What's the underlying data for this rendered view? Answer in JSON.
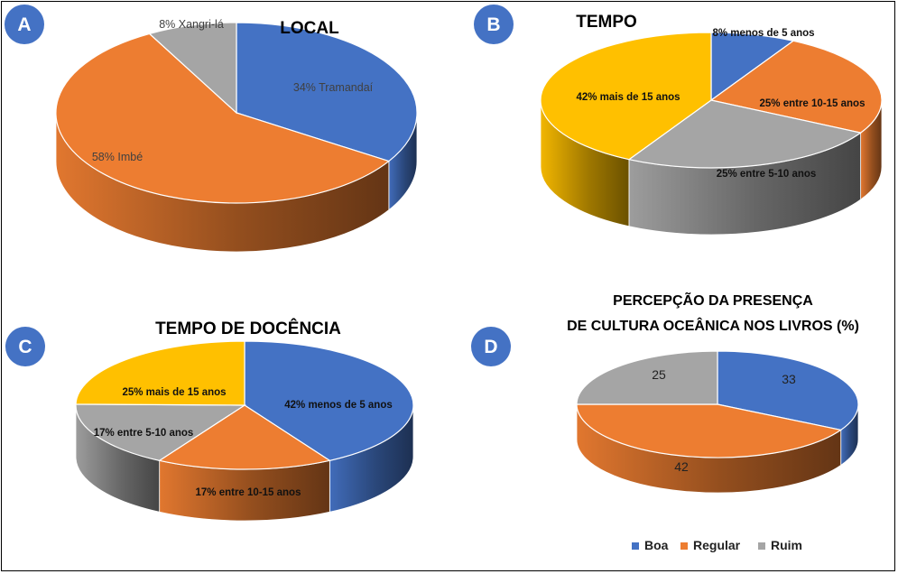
{
  "colors": {
    "blue": "#4472C4",
    "orange": "#ED7D31",
    "gray": "#A5A5A5",
    "gold": "#FFC000",
    "badge": "#4472C4",
    "badge_text": "#FFFFFF",
    "title_text": "#000000"
  },
  "chart_data": [
    {
      "badge": "A",
      "type": "pie",
      "title": "LOCAL",
      "slices": [
        {
          "label": "34% Tramandaí",
          "value": 34,
          "color": "blue"
        },
        {
          "label": "58% Imbé",
          "value": 58,
          "color": "orange"
        },
        {
          "label": "8% Xangri-lá",
          "value": 8,
          "color": "gray"
        }
      ]
    },
    {
      "badge": "B",
      "type": "pie",
      "title": "TEMPO",
      "slices": [
        {
          "label": "8% menos de 5 anos",
          "value": 8,
          "color": "blue"
        },
        {
          "label": "25% entre 10-15 anos",
          "value": 25,
          "color": "orange"
        },
        {
          "label": "25% entre 5-10 anos",
          "value": 25,
          "color": "gray"
        },
        {
          "label": "42% mais de 15 anos",
          "value": 42,
          "color": "gold"
        }
      ]
    },
    {
      "badge": "C",
      "type": "pie",
      "title": "TEMPO DE DOCÊNCIA",
      "slices": [
        {
          "label": "42% menos de 5 anos",
          "value": 42,
          "color": "blue"
        },
        {
          "label": "17% entre 10-15 anos",
          "value": 17,
          "color": "orange"
        },
        {
          "label": "17% entre 5-10 anos",
          "value": 17,
          "color": "gray"
        },
        {
          "label": "25% mais de 15 anos",
          "value": 25,
          "color": "gold"
        }
      ]
    },
    {
      "badge": "D",
      "type": "pie",
      "title": [
        "PERCEPÇÃO DA PRESENÇA",
        "DE CULTURA OCEÂNICA NOS LIVROS (%)"
      ],
      "slices": [
        {
          "label": "33",
          "value": 33,
          "color": "blue"
        },
        {
          "label": "42",
          "value": 42,
          "color": "orange"
        },
        {
          "label": "25",
          "value": 25,
          "color": "gray"
        }
      ],
      "legend": {
        "position": "bottom",
        "entries": [
          {
            "label": "Boa",
            "color": "blue"
          },
          {
            "label": "Regular",
            "color": "orange"
          },
          {
            "label": "Ruim",
            "color": "gray"
          }
        ]
      }
    }
  ]
}
